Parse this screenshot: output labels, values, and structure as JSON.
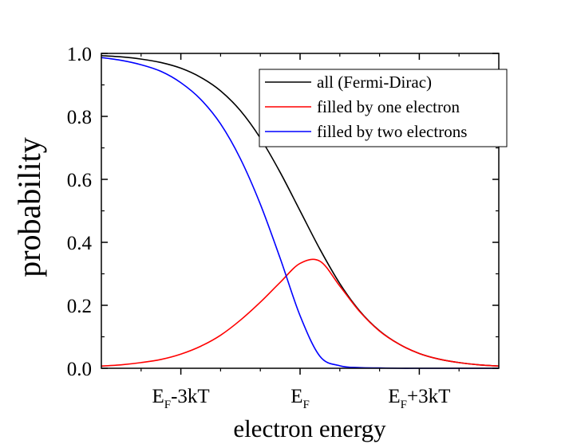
{
  "chart_data": {
    "type": "line",
    "title": "",
    "xlabel": "electron energy",
    "ylabel": "probability",
    "xlim": [
      -5,
      5
    ],
    "ylim": [
      0.0,
      1.0
    ],
    "x_ticks": [
      {
        "value": -3,
        "main": "E",
        "sub": "F",
        "rest": "-3kT"
      },
      {
        "value": 0,
        "main": "E",
        "sub": "F",
        "rest": ""
      },
      {
        "value": 3,
        "main": "E",
        "sub": "F",
        "rest": "+3kT"
      }
    ],
    "x_minor_ticks": [
      -4,
      -2,
      -1,
      1,
      2,
      4
    ],
    "y_ticks": [
      "0.0",
      "0.2",
      "0.4",
      "0.6",
      "0.8",
      "1.0"
    ],
    "y_tick_values": [
      0.0,
      0.2,
      0.4,
      0.6,
      0.8,
      1.0
    ],
    "grid": false,
    "legend_position": "top-right",
    "x": [
      -5,
      -4.5,
      -4,
      -3.5,
      -3,
      -2.5,
      -2,
      -1.5,
      -1,
      -0.5,
      0,
      0.5,
      1,
      1.5,
      2,
      2.5,
      3,
      3.5,
      4,
      4.5,
      5
    ],
    "series": [
      {
        "name": "all (Fermi-Dirac)",
        "color": "#000000",
        "values": [
          0.993,
          0.989,
          0.982,
          0.971,
          0.953,
          0.924,
          0.881,
          0.818,
          0.731,
          0.622,
          0.5,
          0.378,
          0.269,
          0.182,
          0.119,
          0.076,
          0.047,
          0.029,
          0.018,
          0.011,
          0.007
        ]
      },
      {
        "name": "filled by one electron",
        "color": "#ff0000",
        "values": [
          0.007,
          0.011,
          0.018,
          0.028,
          0.045,
          0.07,
          0.105,
          0.153,
          0.21,
          0.273,
          0.333,
          0.34,
          0.261,
          0.18,
          0.118,
          0.076,
          0.047,
          0.029,
          0.018,
          0.011,
          0.007
        ]
      },
      {
        "name": "filled by two electrons",
        "color": "#0000ff",
        "values": [
          0.987,
          0.978,
          0.964,
          0.943,
          0.907,
          0.854,
          0.776,
          0.665,
          0.521,
          0.349,
          0.167,
          0.038,
          0.008,
          0.002,
          0.001,
          0.0,
          0.0,
          0.0,
          0.0,
          0.0,
          0.0
        ]
      }
    ]
  }
}
